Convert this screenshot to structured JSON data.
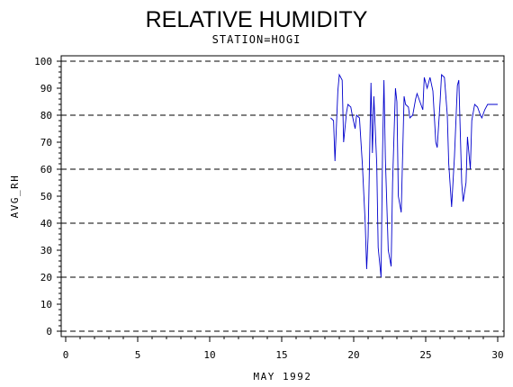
{
  "chart_data": {
    "type": "line",
    "title": "RELATIVE HUMIDITY",
    "subtitle": "STATION=HOGI",
    "xlabel": "MAY 1992",
    "ylabel": "AVG_RH",
    "xlim": [
      0,
      30
    ],
    "ylim": [
      0,
      100
    ],
    "xticks": [
      0,
      5,
      10,
      15,
      20,
      25,
      30
    ],
    "yticks": [
      0,
      10,
      20,
      30,
      40,
      50,
      60,
      70,
      80,
      90,
      100
    ],
    "grid": "horizontal dashed at 0, 20, 40, 60, 80, 100",
    "series_color": "#0000cc",
    "series": [
      {
        "x": [
          18.4,
          18.6,
          18.7,
          18.9,
          19.0,
          19.2,
          19.3,
          19.5,
          19.6,
          19.8,
          19.9,
          20.1,
          20.2,
          20.4,
          20.6,
          20.8,
          20.9,
          21.0,
          21.2,
          21.3,
          21.4,
          21.6,
          21.7,
          21.9,
          22.0,
          22.1,
          22.2,
          22.4,
          22.6,
          22.7,
          22.9,
          23.0,
          23.1,
          23.3,
          23.5,
          23.6,
          23.8,
          23.9,
          24.1,
          24.3,
          24.4,
          24.6,
          24.8,
          24.9,
          25.1,
          25.3,
          25.5,
          25.7,
          25.8,
          26.0,
          26.1,
          26.3,
          26.5,
          26.6,
          26.8,
          27.0,
          27.2,
          27.3,
          27.5,
          27.6,
          27.8,
          27.9,
          28.1,
          28.2,
          28.4,
          28.6,
          28.8,
          28.9,
          29.1,
          29.3,
          29.4,
          29.5,
          29.6,
          29.7,
          29.8,
          30.0
        ],
        "values": [
          79,
          78,
          63,
          89,
          95,
          93,
          70,
          81,
          84,
          83,
          80,
          75,
          80,
          79,
          62,
          40,
          23,
          35,
          92,
          66,
          87,
          62,
          31,
          20,
          65,
          93,
          64,
          30,
          24,
          55,
          90,
          85,
          50,
          44,
          87,
          84,
          83,
          79,
          80,
          86,
          88,
          85,
          82,
          94,
          90,
          94,
          89,
          70,
          68,
          85,
          95,
          94,
          80,
          62,
          46,
          65,
          91,
          93,
          55,
          48,
          55,
          72,
          60,
          78,
          84,
          83,
          80,
          79,
          82,
          84,
          84,
          84,
          84,
          84,
          84,
          84
        ]
      }
    ]
  }
}
